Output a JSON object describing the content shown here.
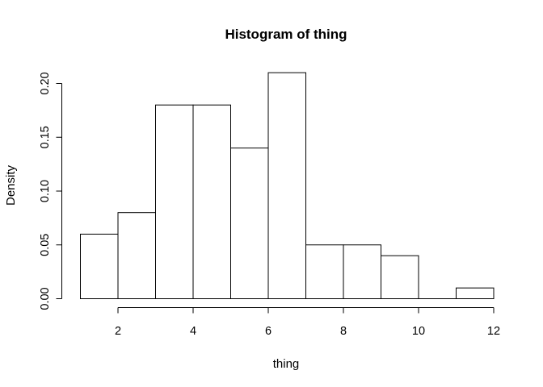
{
  "chart_data": {
    "type": "bar",
    "title": "Histogram of thing",
    "xlabel": "thing",
    "ylabel": "Density",
    "bins": [
      {
        "start": 1,
        "end": 2,
        "density": 0.06
      },
      {
        "start": 2,
        "end": 3,
        "density": 0.08
      },
      {
        "start": 3,
        "end": 4,
        "density": 0.18
      },
      {
        "start": 4,
        "end": 5,
        "density": 0.18
      },
      {
        "start": 5,
        "end": 6,
        "density": 0.14
      },
      {
        "start": 6,
        "end": 7,
        "density": 0.21
      },
      {
        "start": 7,
        "end": 8,
        "density": 0.05
      },
      {
        "start": 8,
        "end": 9,
        "density": 0.05
      },
      {
        "start": 9,
        "end": 10,
        "density": 0.04
      },
      {
        "start": 10,
        "end": 11,
        "density": 0.0
      },
      {
        "start": 11,
        "end": 12,
        "density": 0.01
      }
    ],
    "xticks": [
      2,
      4,
      6,
      8,
      10,
      12
    ],
    "xtick_labels": [
      "2",
      "4",
      "6",
      "8",
      "10",
      "12"
    ],
    "yticks": [
      0.0,
      0.05,
      0.1,
      0.15,
      0.2
    ],
    "ytick_labels": [
      "0.00",
      "0.05",
      "0.10",
      "0.15",
      "0.20"
    ],
    "xlim": [
      1,
      12
    ],
    "ylim": [
      0,
      0.21
    ],
    "grid": false,
    "legend": "none"
  }
}
